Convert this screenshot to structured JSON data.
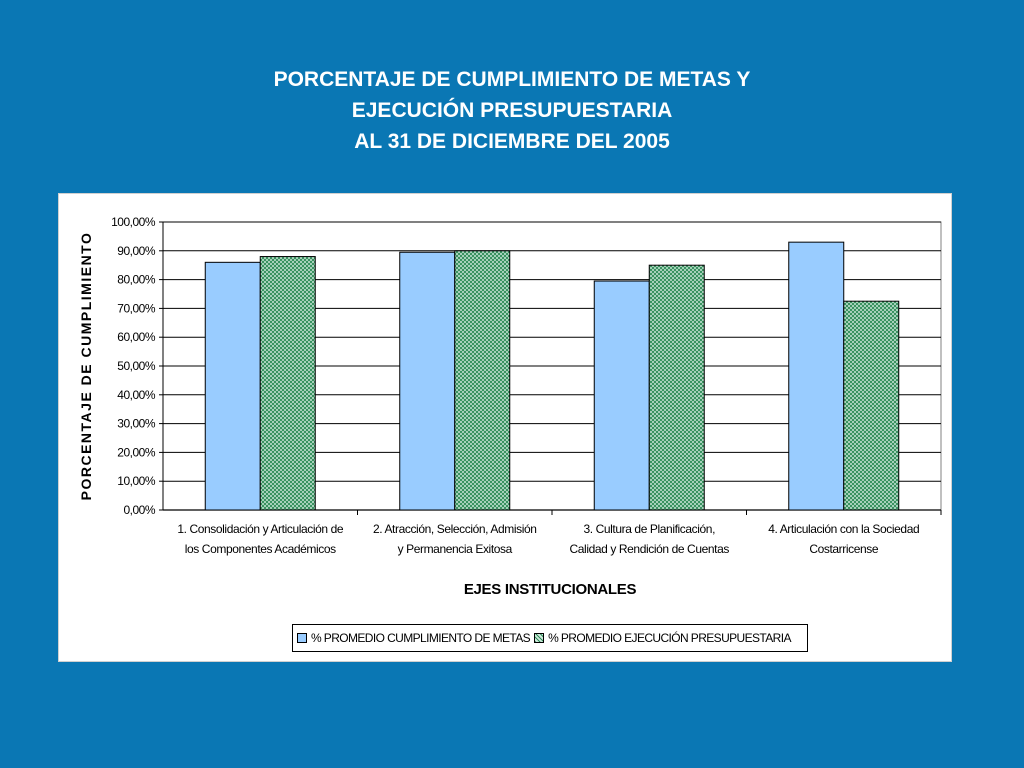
{
  "slide": {
    "title_lines": [
      "PORCENTAJE DE CUMPLIMIENTO DE METAS Y",
      "EJECUCIÓN PRESUPUESTARIA",
      "AL 31 DE DICIEMBRE DEL 2005"
    ]
  },
  "chart_data": {
    "type": "bar",
    "title": "",
    "xlabel": "EJES INSTITUCIONALES",
    "ylabel": "PORCENTAJE DE CUMPLIMIENTO",
    "ylim": [
      0,
      100
    ],
    "yticks": [
      "0,00%",
      "10,00%",
      "20,00%",
      "30,00%",
      "40,00%",
      "50,00%",
      "60,00%",
      "70,00%",
      "80,00%",
      "90,00%",
      "100,00%"
    ],
    "grid": true,
    "legend_position": "bottom",
    "categories": [
      [
        "1. Consolidación y Articulación de",
        "los Componentes Académicos"
      ],
      [
        "2. Atracción, Selección, Admisión",
        "y Permanencia Exitosa"
      ],
      [
        "3. Cultura de Planificación,",
        "Calidad y Rendición de Cuentas"
      ],
      [
        "4. Articulación con la Sociedad",
        "Costarricense"
      ]
    ],
    "series": [
      {
        "name": "% PROMEDIO CUMPLIMIENTO DE METAS",
        "color": "#99ccff",
        "pattern": "solid",
        "values": [
          86,
          89.5,
          79.5,
          93
        ]
      },
      {
        "name": "% PROMEDIO EJECUCIÓN PRESUPUESTARIA",
        "color": "#339966",
        "pattern": "crosshatch",
        "values": [
          88,
          90,
          85,
          72.5
        ]
      }
    ]
  }
}
